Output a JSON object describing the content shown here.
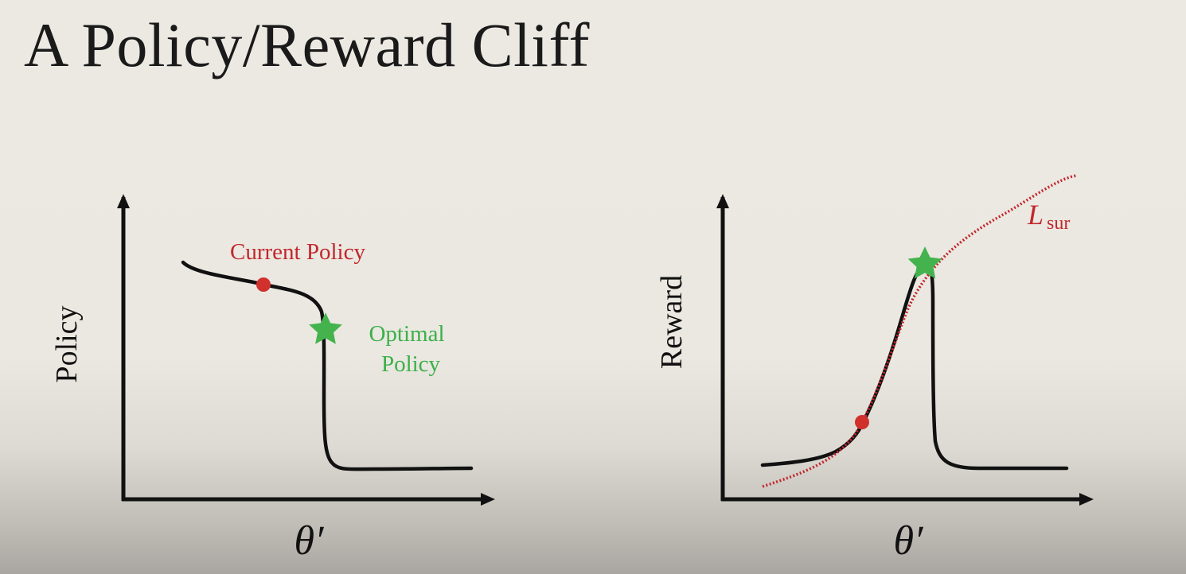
{
  "slide": {
    "title": "A Policy/Reward Cliff"
  },
  "colors": {
    "curve": "#111111",
    "current_marker": "#d0312d",
    "optimal_marker": "#44b34e",
    "surrogate": "#c1272d",
    "current_text": "#c1272d",
    "optimal_text": "#3cb04a"
  },
  "left_plot": {
    "ylabel": "Policy",
    "xlabel": "θ′",
    "current_label": "Current Policy",
    "optimal_label_line1": "Optimal",
    "optimal_label_line2": "Policy",
    "current_marker_icon": "red-circle",
    "optimal_marker_icon": "green-star"
  },
  "right_plot": {
    "ylabel": "Reward",
    "xlabel": "θ′",
    "surrogate_symbol": "L",
    "surrogate_subscript": "sur",
    "current_marker_icon": "red-circle",
    "optimal_marker_icon": "green-star",
    "surrogate_line_style": "dotted"
  }
}
